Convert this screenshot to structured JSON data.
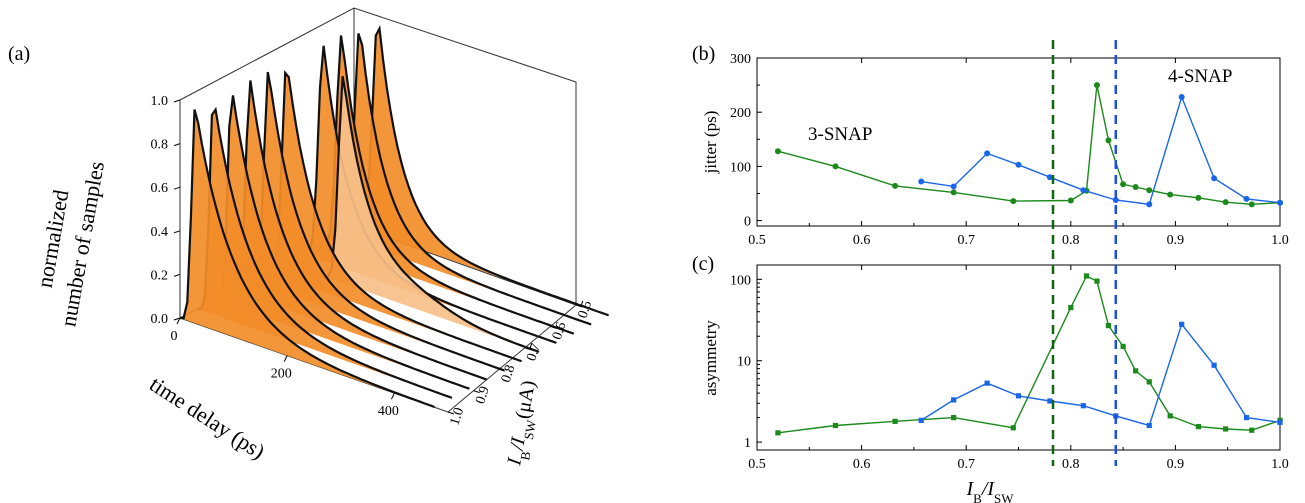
{
  "panels": {
    "a": "(a)",
    "b": "(b)",
    "c": "(c)"
  },
  "colors": {
    "green": "#1b8a1b",
    "blue": "#1a66e8",
    "dashed_green": "#116611",
    "dashed_blue": "#1f4fe0",
    "orange": "#f28c28",
    "orange_light": "#f7c089"
  },
  "panel_a": {
    "ylabel_line1": "normalized",
    "ylabel_line2": "number of samples",
    "xlabel": "time delay (ps)",
    "zlabel": "I",
    "zlabel_sub_b": "B",
    "zlabel_slash": "/I",
    "zlabel_sub_sw": "SW",
    "zlabel_unit": "(μA)",
    "yticks": [
      "0.0",
      "0.2",
      "0.4",
      "0.6",
      "0.8",
      "1.0"
    ],
    "xticks": [
      "0",
      "200",
      "400"
    ],
    "zticks": [
      "0.5",
      "0.6",
      "0.7",
      "0.8",
      "0.9",
      "1.0"
    ]
  },
  "chart_data": [
    {
      "type": "line",
      "panel": "b",
      "ylabel": "jitter (ps)",
      "xlim": [
        0.5,
        1.0
      ],
      "ylim": [
        -10,
        300
      ],
      "xticks": [
        "0.5",
        "0.6",
        "0.7",
        "0.8",
        "0.9",
        "1.0"
      ],
      "yticks": [
        "0",
        "100",
        "200",
        "300"
      ],
      "annotations": [
        "3-SNAP",
        "4-SNAP"
      ],
      "vlines": [
        0.783,
        0.843
      ],
      "series": [
        {
          "name": "3-SNAP",
          "color": "#1b8a1b",
          "x": [
            0.52,
            0.575,
            0.632,
            0.688,
            0.745,
            0.8,
            0.815,
            0.825,
            0.836,
            0.85,
            0.862,
            0.875,
            0.895,
            0.922,
            0.948,
            0.973,
            1.0
          ],
          "y": [
            128,
            100,
            64,
            52,
            36,
            37,
            55,
            250,
            148,
            67,
            62,
            56,
            48,
            42,
            34,
            30,
            33
          ]
        },
        {
          "name": "4-SNAP",
          "color": "#1a66e8",
          "x": [
            0.657,
            0.688,
            0.72,
            0.75,
            0.78,
            0.812,
            0.843,
            0.875,
            0.906,
            0.937,
            0.968,
            1.0
          ],
          "y": [
            72,
            63,
            124,
            103,
            80,
            56,
            38,
            30,
            228,
            78,
            40,
            33
          ]
        }
      ]
    },
    {
      "type": "line",
      "panel": "c",
      "ylabel": "asymmetry",
      "xlabel": "I",
      "xlabel_sub_b": "B",
      "xlabel_slash": "/I",
      "xlabel_sub_sw": "SW",
      "xlim": [
        0.5,
        1.0
      ],
      "ylim": [
        0.8,
        150
      ],
      "yscale": "log",
      "xticks": [
        "0.5",
        "0.6",
        "0.7",
        "0.8",
        "0.9",
        "1.0"
      ],
      "yticks": [
        "1",
        "10",
        "100"
      ],
      "vlines": [
        0.783,
        0.843
      ],
      "series": [
        {
          "name": "3-SNAP",
          "color": "#1b8a1b",
          "x": [
            0.52,
            0.575,
            0.632,
            0.688,
            0.745,
            0.8,
            0.815,
            0.825,
            0.836,
            0.85,
            0.862,
            0.875,
            0.895,
            0.922,
            0.948,
            0.973,
            1.0
          ],
          "y": [
            1.3,
            1.6,
            1.8,
            2.0,
            1.5,
            45,
            110,
            95,
            27,
            15,
            7.5,
            5.5,
            2.1,
            1.55,
            1.45,
            1.4,
            1.85
          ]
        },
        {
          "name": "4-SNAP",
          "color": "#1a66e8",
          "x": [
            0.657,
            0.688,
            0.72,
            0.75,
            0.78,
            0.812,
            0.843,
            0.875,
            0.906,
            0.937,
            0.968,
            1.0
          ],
          "y": [
            1.85,
            3.3,
            5.3,
            3.7,
            3.2,
            2.8,
            2.1,
            1.6,
            28,
            8.8,
            2.0,
            1.75
          ]
        }
      ]
    }
  ]
}
